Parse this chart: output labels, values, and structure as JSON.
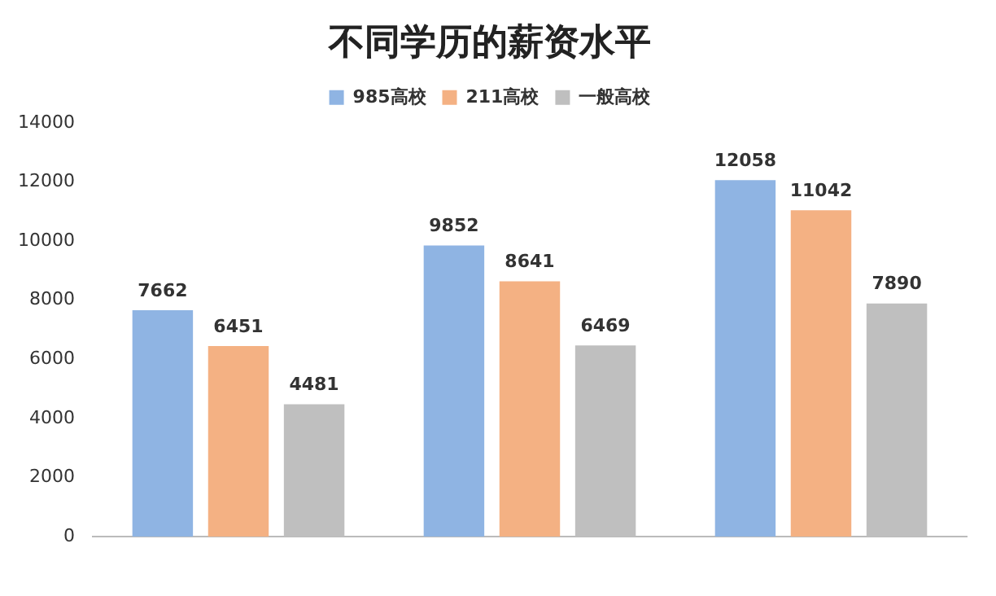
{
  "chart_data": {
    "type": "bar",
    "title": "不同学历的薪资水平",
    "categories": [
      null,
      null,
      null
    ],
    "series": [
      {
        "name": "985高校",
        "color": "#8fb4e3",
        "values": [
          7662,
          9852,
          12058
        ]
      },
      {
        "name": "211高校",
        "color": "#f4b183",
        "values": [
          6451,
          8641,
          11042
        ]
      },
      {
        "name": "一般高校",
        "color": "#bfbfbf",
        "values": [
          4481,
          6469,
          7890
        ]
      }
    ],
    "ylim": [
      0,
      14000
    ],
    "yticks": [
      0,
      2000,
      4000,
      6000,
      8000,
      10000,
      12000,
      14000
    ],
    "grid": false,
    "legend": "top",
    "data_labels": true
  }
}
